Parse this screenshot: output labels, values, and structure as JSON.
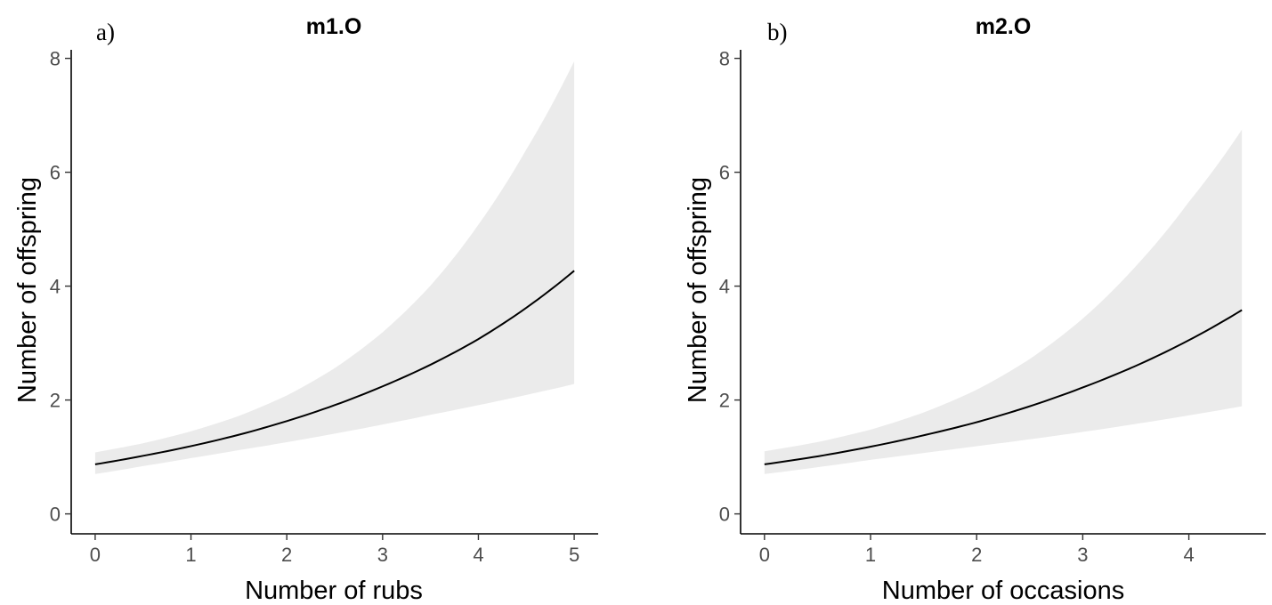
{
  "chart_data": [
    {
      "type": "line",
      "panel_label": "a)",
      "title": "m1.O",
      "xlabel": "Number of rubs",
      "ylabel": "Number of offspring",
      "xlim": [
        -0.25,
        5.25
      ],
      "ylim": [
        -0.35,
        8.15
      ],
      "xticks": [
        0,
        1,
        2,
        3,
        4,
        5
      ],
      "yticks": [
        0,
        2,
        4,
        6,
        8
      ],
      "grid": false,
      "line_color": "#000000",
      "ribbon_color": "#ebebeb",
      "series": [
        {
          "x": [
            0,
            0.5,
            1,
            1.5,
            2,
            2.5,
            3,
            3.5,
            4,
            4.5,
            5
          ],
          "y": [
            0.87,
            1.02,
            1.19,
            1.39,
            1.63,
            1.91,
            2.24,
            2.62,
            3.07,
            3.62,
            4.27
          ],
          "lower": [
            0.7,
            0.84,
            0.98,
            1.12,
            1.26,
            1.41,
            1.57,
            1.74,
            1.91,
            2.09,
            2.28
          ],
          "upper": [
            1.08,
            1.24,
            1.45,
            1.72,
            2.08,
            2.56,
            3.19,
            4.01,
            5.08,
            6.4,
            7.95
          ]
        }
      ]
    },
    {
      "type": "line",
      "panel_label": "b)",
      "title": "m2.O",
      "xlabel": "Number of occasions",
      "ylabel": "Number of offspring",
      "xlim": [
        -0.225,
        4.725
      ],
      "ylim": [
        -0.35,
        8.15
      ],
      "xticks": [
        0,
        1,
        2,
        3,
        4
      ],
      "yticks": [
        0,
        2,
        4,
        6,
        8
      ],
      "grid": false,
      "line_color": "#000000",
      "ribbon_color": "#ebebeb",
      "series": [
        {
          "x": [
            0,
            0.5,
            1,
            1.5,
            2,
            2.5,
            3,
            3.5,
            4,
            4.5
          ],
          "y": [
            0.87,
            1.01,
            1.18,
            1.38,
            1.61,
            1.89,
            2.22,
            2.6,
            3.05,
            3.58
          ],
          "lower": [
            0.7,
            0.82,
            0.95,
            1.07,
            1.19,
            1.31,
            1.44,
            1.58,
            1.73,
            1.89
          ],
          "upper": [
            1.1,
            1.26,
            1.48,
            1.78,
            2.18,
            2.72,
            3.43,
            4.35,
            5.48,
            6.75
          ]
        }
      ]
    }
  ]
}
